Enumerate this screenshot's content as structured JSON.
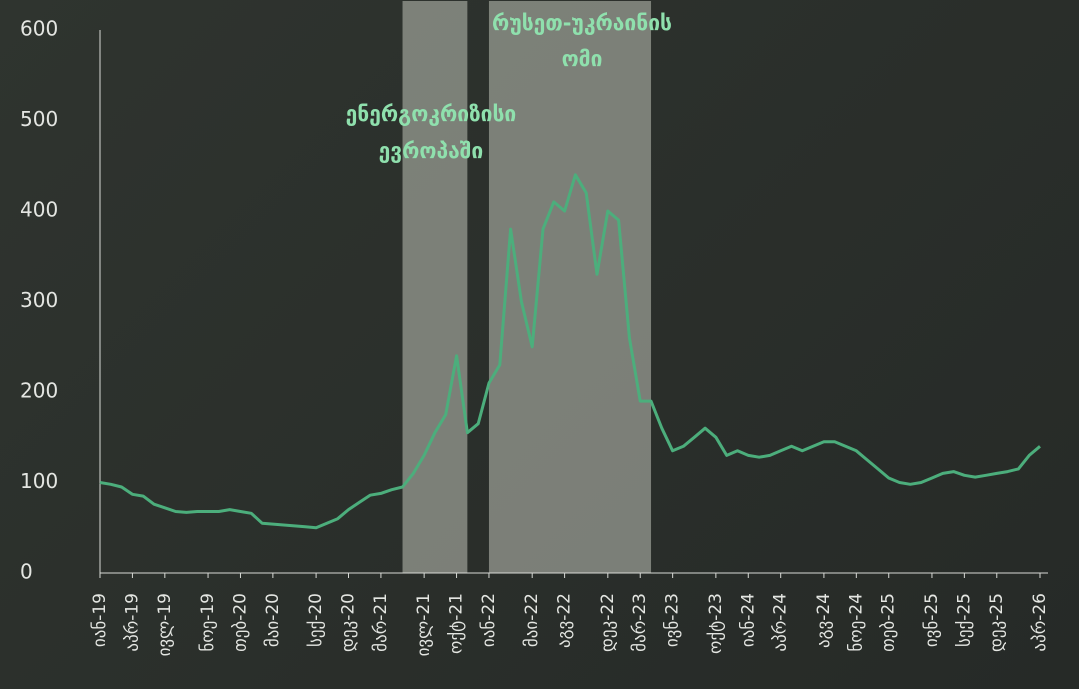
{
  "chart_data": {
    "type": "line",
    "x": [
      "2019-01",
      "2019-02",
      "2019-03",
      "2019-04",
      "2019-05",
      "2019-06",
      "2019-07",
      "2019-08",
      "2019-09",
      "2019-10",
      "2019-11",
      "2019-12",
      "2020-01",
      "2020-02",
      "2020-03",
      "2020-04",
      "2020-05",
      "2020-06",
      "2020-07",
      "2020-08",
      "2020-09",
      "2020-10",
      "2020-11",
      "2020-12",
      "2021-01",
      "2021-02",
      "2021-03",
      "2021-04",
      "2021-05",
      "2021-06",
      "2021-07",
      "2021-08",
      "2021-09",
      "2021-10",
      "2021-11",
      "2021-12",
      "2022-01",
      "2022-02",
      "2022-03",
      "2022-04",
      "2022-05",
      "2022-06",
      "2022-07",
      "2022-08",
      "2022-09",
      "2022-10",
      "2022-11",
      "2022-12",
      "2023-01",
      "2023-02",
      "2023-03",
      "2023-04",
      "2023-05",
      "2023-06",
      "2023-07",
      "2023-08",
      "2023-09",
      "2023-10",
      "2023-11",
      "2023-12",
      "2024-01",
      "2024-02",
      "2024-03",
      "2024-04",
      "2024-05",
      "2024-06",
      "2024-07",
      "2024-08",
      "2024-09",
      "2024-10",
      "2024-11",
      "2024-12",
      "2025-01",
      "2025-02",
      "2025-03",
      "2025-04",
      "2025-05",
      "2025-06",
      "2025-07",
      "2025-08",
      "2025-09",
      "2025-10",
      "2025-11",
      "2025-12",
      "2026-01",
      "2026-02",
      "2026-03",
      "2026-04"
    ],
    "series": [
      {
        "color": "#4cae7c",
        "values": [
          100,
          98,
          95,
          87,
          85,
          76,
          72,
          68,
          67,
          68,
          68,
          68,
          70,
          68,
          66,
          55,
          54,
          53,
          52,
          51,
          50,
          55,
          60,
          70,
          78,
          86,
          88,
          92,
          95,
          110,
          130,
          155,
          175,
          240,
          155,
          165,
          210,
          230,
          380,
          300,
          250,
          380,
          410,
          400,
          440,
          420,
          330,
          400,
          390,
          260,
          190,
          190,
          160,
          135,
          140,
          150,
          160,
          150,
          130,
          135,
          130,
          128,
          130,
          135,
          140,
          135,
          140,
          145,
          145,
          140,
          135,
          125,
          115,
          105,
          100,
          98,
          100,
          105,
          110,
          112,
          108,
          106,
          108,
          110,
          112,
          115,
          130,
          140
        ]
      }
    ],
    "xlim": [
      "2019-01",
      "2026-04"
    ],
    "xticks": [
      {
        "value": "2019-01",
        "label": "იან-19"
      },
      {
        "value": "2019-04",
        "label": "აპრ-19"
      },
      {
        "value": "2019-07",
        "label": "ივლ-19"
      },
      {
        "value": "2019-11",
        "label": "ნოე-19"
      },
      {
        "value": "2020-02",
        "label": "თებ-20"
      },
      {
        "value": "2020-05",
        "label": "მაი-20"
      },
      {
        "value": "2020-09",
        "label": "სექ-20"
      },
      {
        "value": "2020-12",
        "label": "დეკ-20"
      },
      {
        "value": "2021-03",
        "label": "მარ-21"
      },
      {
        "value": "2021-07",
        "label": "ივლ-21"
      },
      {
        "value": "2021-10",
        "label": "ოქტ-21"
      },
      {
        "value": "2022-01",
        "label": "იან-22"
      },
      {
        "value": "2022-05",
        "label": "მაი-22"
      },
      {
        "value": "2022-08",
        "label": "აგვ-22"
      },
      {
        "value": "2022-12",
        "label": "დეკ-22"
      },
      {
        "value": "2023-03",
        "label": "მარ-23"
      },
      {
        "value": "2023-06",
        "label": "ივნ-23"
      },
      {
        "value": "2023-10",
        "label": "ოქტ-23"
      },
      {
        "value": "2024-01",
        "label": "იან-24"
      },
      {
        "value": "2024-04",
        "label": "აპრ-24"
      },
      {
        "value": "2024-08",
        "label": "აგვ-24"
      },
      {
        "value": "2024-11",
        "label": "ნოე-24"
      },
      {
        "value": "2025-02",
        "label": "თებ-25"
      },
      {
        "value": "2025-06",
        "label": "ივნ-25"
      },
      {
        "value": "2025-09",
        "label": "სექ-25"
      },
      {
        "value": "2025-12",
        "label": "დეკ-25"
      },
      {
        "value": "2026-04",
        "label": "აპრ-26"
      }
    ],
    "ylim": [
      0,
      600
    ],
    "yticks": [
      0,
      100,
      200,
      300,
      400,
      500,
      600
    ],
    "shaded": [
      {
        "start": "2021-05",
        "end": "2021-11",
        "label": [
          "ენერგოკრიზისი",
          "ევროპაში"
        ]
      },
      {
        "start": "2022-01",
        "end": "2023-04",
        "label": [
          "რუსეთ-უკრაინის",
          "ომი"
        ]
      }
    ]
  }
}
